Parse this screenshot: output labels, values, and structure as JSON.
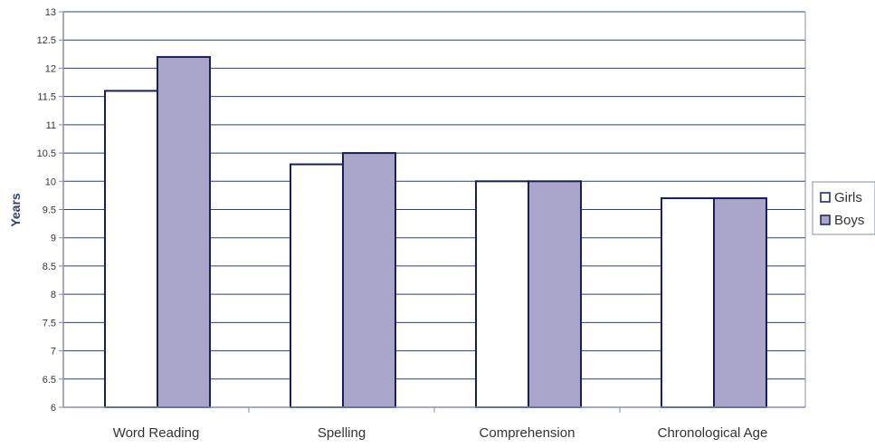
{
  "chart_data": {
    "type": "bar",
    "title": "",
    "xlabel": "",
    "ylabel": "Years",
    "ylim": [
      6,
      13
    ],
    "yticks": [
      "6",
      "6.5",
      "7",
      "7.5",
      "8",
      "8.5",
      "9",
      "9.5",
      "10",
      "10.5",
      "11",
      "11.5",
      "12",
      "12.5",
      "13"
    ],
    "categories": [
      "Word Reading",
      "Spelling",
      "Comprehension",
      "Chronological Age"
    ],
    "series": [
      {
        "name": "Girls",
        "values": [
          11.6,
          10.3,
          10.0,
          9.7
        ],
        "color": "#ffffff"
      },
      {
        "name": "Boys",
        "values": [
          12.2,
          10.5,
          10.0,
          9.7
        ],
        "color": "#a9a6c9"
      }
    ],
    "grid": true,
    "legend_position": "right",
    "colors": {
      "axis": "#8a8db0",
      "grid": "#2e3f7a",
      "bar_outline": "#1a1f5c"
    }
  }
}
